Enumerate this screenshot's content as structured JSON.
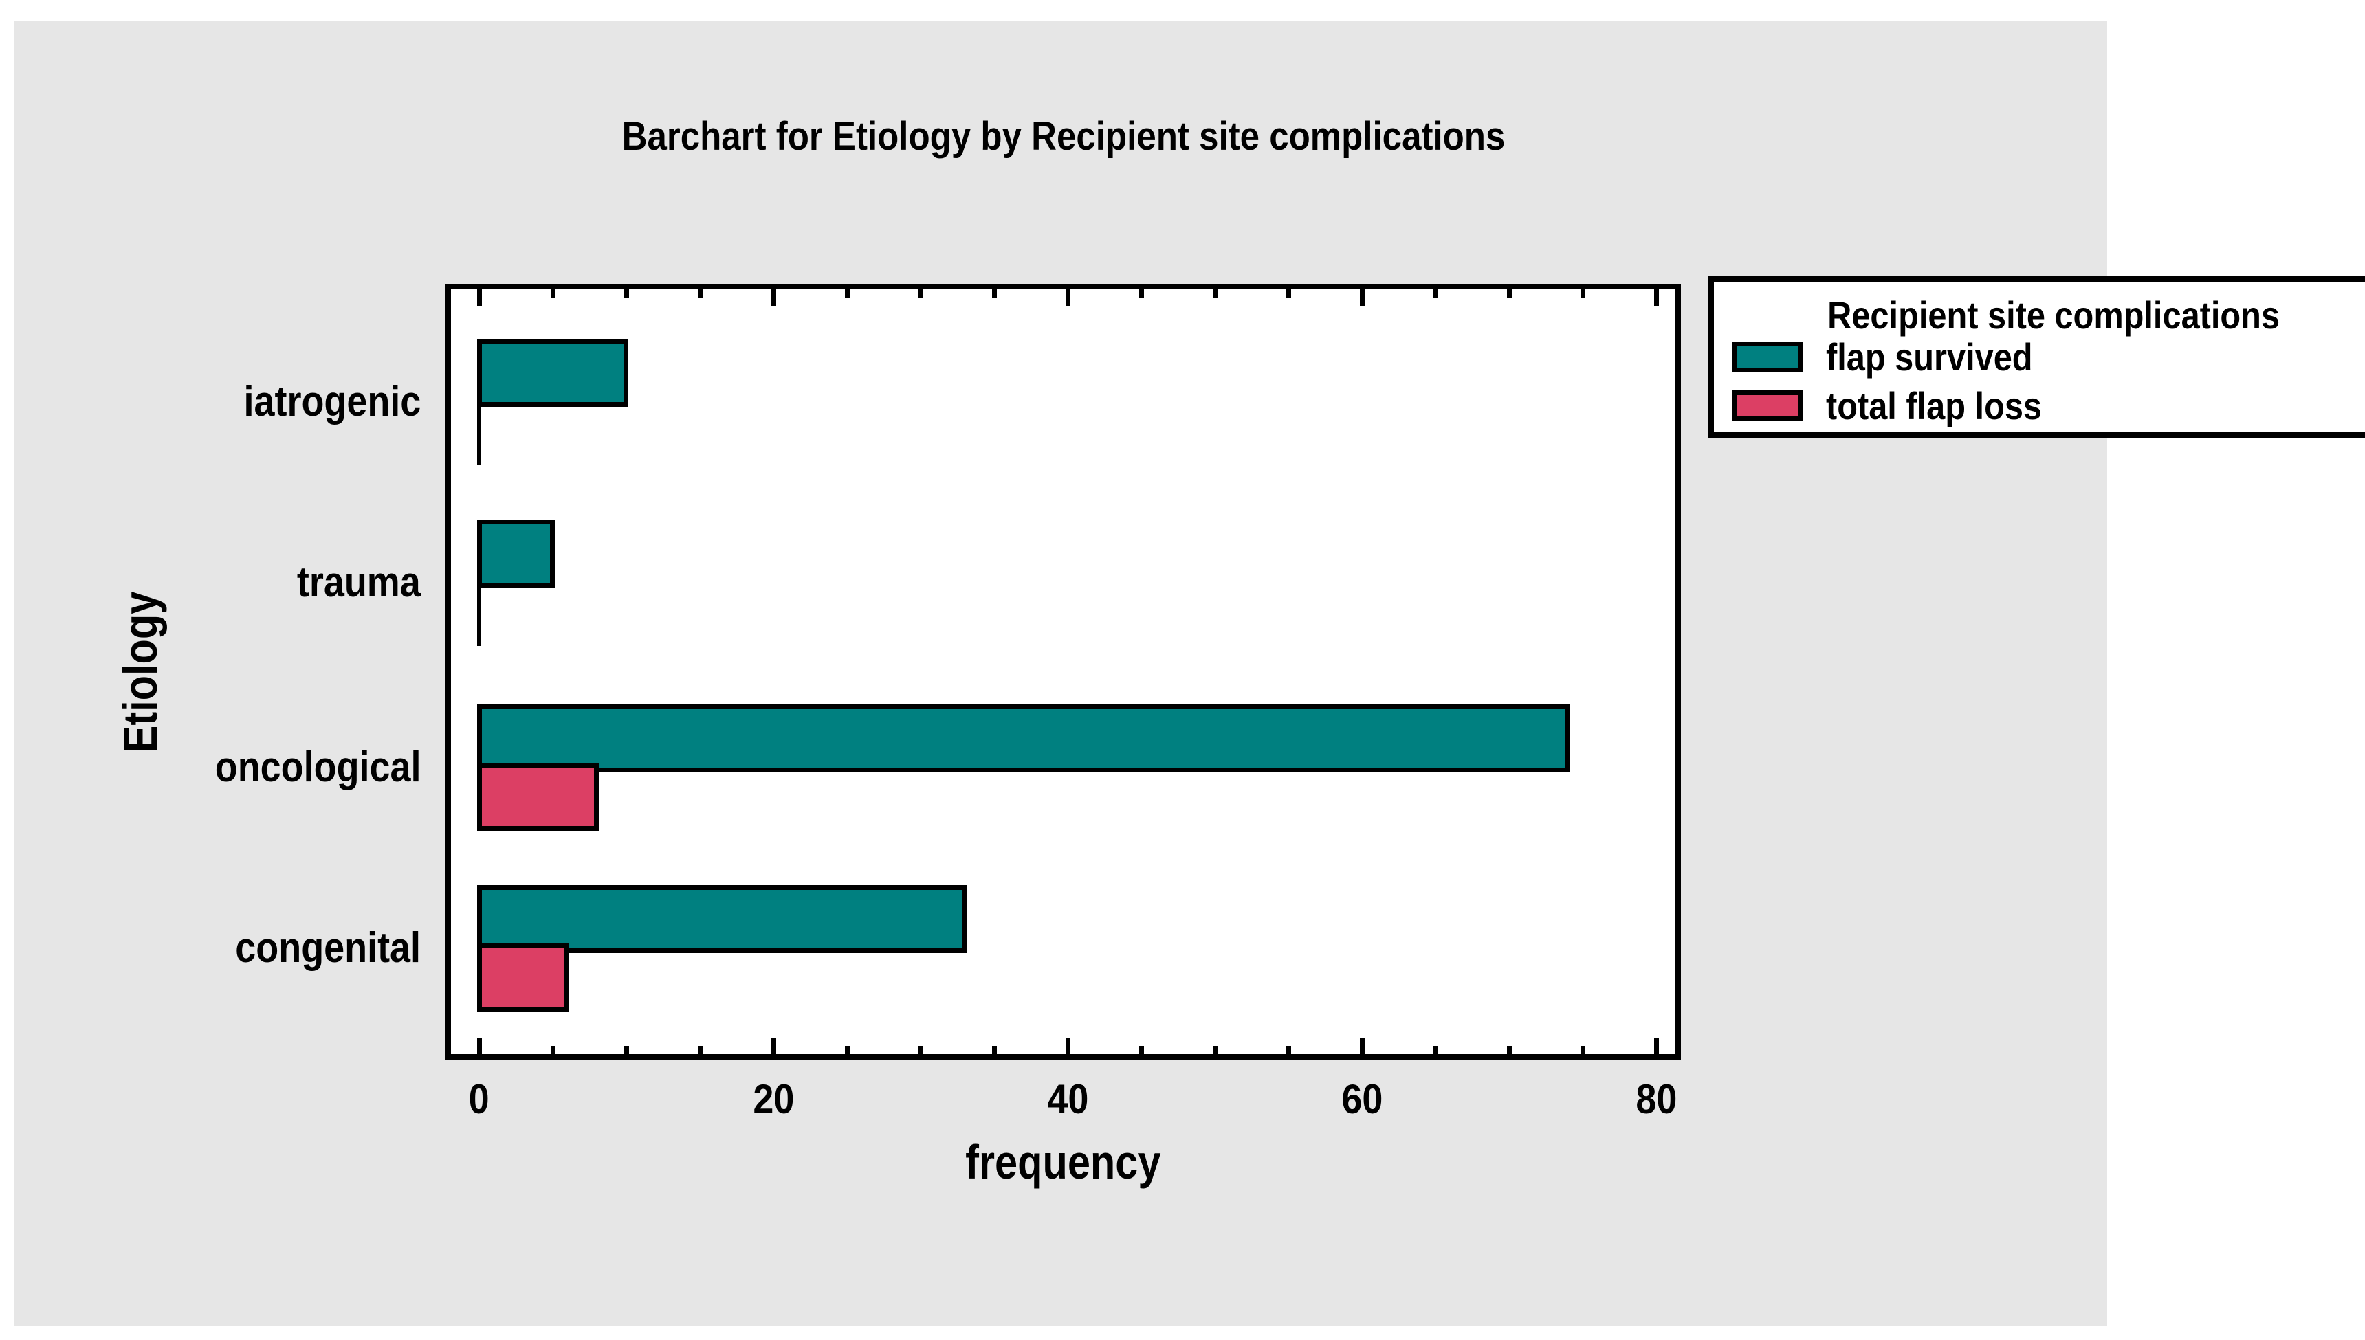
{
  "title": "Barchart for Etiology by Recipient site complications",
  "axes": {
    "x_label": "frequency",
    "y_label": "Etiology"
  },
  "legend": {
    "title": "Recipient site complications",
    "items": [
      {
        "label": "flap survived",
        "color": "#008080"
      },
      {
        "label": "total flap loss",
        "color": "#DC3F64"
      }
    ]
  },
  "colors": {
    "background_panel": "#E6E6E6",
    "plot_background": "#FFFFFF",
    "outline": "#000000",
    "flap_survived": "#008080",
    "total_flap_loss": "#DC3F64"
  },
  "chart_data": {
    "type": "bar",
    "orientation": "horizontal",
    "title": "Barchart for Etiology by Recipient site complications",
    "xlabel": "frequency",
    "ylabel": "Etiology",
    "categories": [
      "iatrogenic",
      "trauma",
      "oncological",
      "congenital"
    ],
    "series": [
      {
        "name": "flap survived",
        "color": "#008080",
        "values": [
          10,
          5,
          74,
          33
        ]
      },
      {
        "name": "total flap loss",
        "color": "#DC3F64",
        "values": [
          0,
          0,
          8,
          6
        ]
      }
    ],
    "xlim": [
      0,
      82
    ],
    "xticks_major": [
      0,
      20,
      40,
      60,
      80
    ],
    "xtick_minor_step": 5,
    "grid": "off",
    "legend_position": "outside-right-top"
  }
}
